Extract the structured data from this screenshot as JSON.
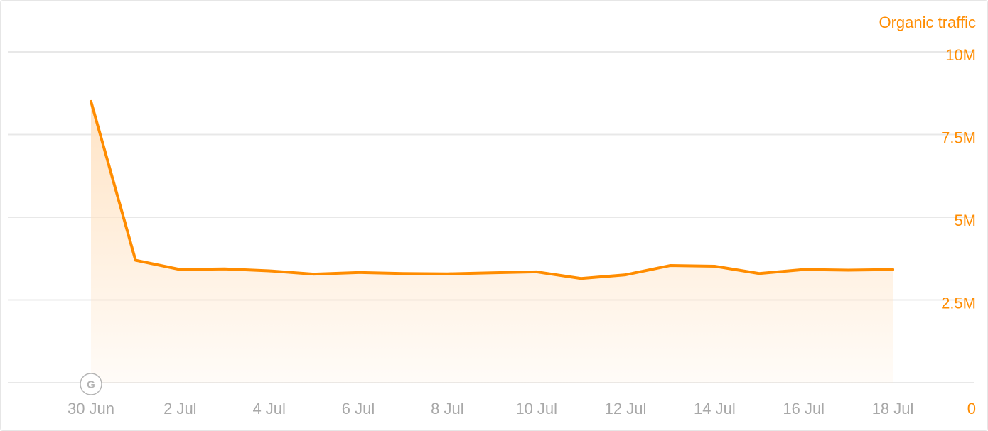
{
  "chart_data": {
    "type": "area",
    "title": "",
    "xlabel": "",
    "ylabel": "",
    "series_title": "Organic traffic",
    "y_axis_position": "right",
    "ylim": [
      0,
      12000000
    ],
    "y_ticks": [
      {
        "value": 0,
        "label": "0"
      },
      {
        "value": 2500000,
        "label": "2.5M"
      },
      {
        "value": 5000000,
        "label": "5M"
      },
      {
        "value": 7500000,
        "label": "7.5M"
      },
      {
        "value": 10000000,
        "label": "10M"
      }
    ],
    "y_gridlines": [
      2500000,
      5000000,
      7500000,
      10000000,
      12500000
    ],
    "x_ticks": [
      "2021-06-30",
      "2021-07-02",
      "2021-07-04",
      "2021-07-06",
      "2021-07-08",
      "2021-07-10",
      "2021-07-12",
      "2021-07-14",
      "2021-07-16",
      "2021-07-18"
    ],
    "x_tick_labels": [
      "30 Jun",
      "2 Jul",
      "4 Jul",
      "6 Jul",
      "8 Jul",
      "10 Jul",
      "12 Jul",
      "14 Jul",
      "16 Jul",
      "18 Jul"
    ],
    "grid": true,
    "legend": "none",
    "colors": {
      "line": "#ff8c00",
      "fill": "#ffe2c2",
      "axis_text_y": "#ff8c00",
      "axis_text_x": "#a8a8a8",
      "grid": "#e8e8e8",
      "event_marker": "#b4b4b4"
    },
    "events": [
      {
        "x": "2021-06-30",
        "letter": "G",
        "icon": "google-update-icon"
      }
    ],
    "series": [
      {
        "x": [
          "2021-06-30",
          "2021-07-01",
          "2021-07-02",
          "2021-07-03",
          "2021-07-04",
          "2021-07-05",
          "2021-07-06",
          "2021-07-07",
          "2021-07-08",
          "2021-07-09",
          "2021-07-10",
          "2021-07-11",
          "2021-07-12",
          "2021-07-13",
          "2021-07-14",
          "2021-07-15",
          "2021-07-16",
          "2021-07-17",
          "2021-07-18"
        ],
        "values": [
          8500000,
          3700000,
          3420000,
          3440000,
          3380000,
          3280000,
          3330000,
          3300000,
          3290000,
          3320000,
          3350000,
          3150000,
          3260000,
          3540000,
          3520000,
          3300000,
          3420000,
          3400000,
          3420000
        ]
      }
    ]
  }
}
